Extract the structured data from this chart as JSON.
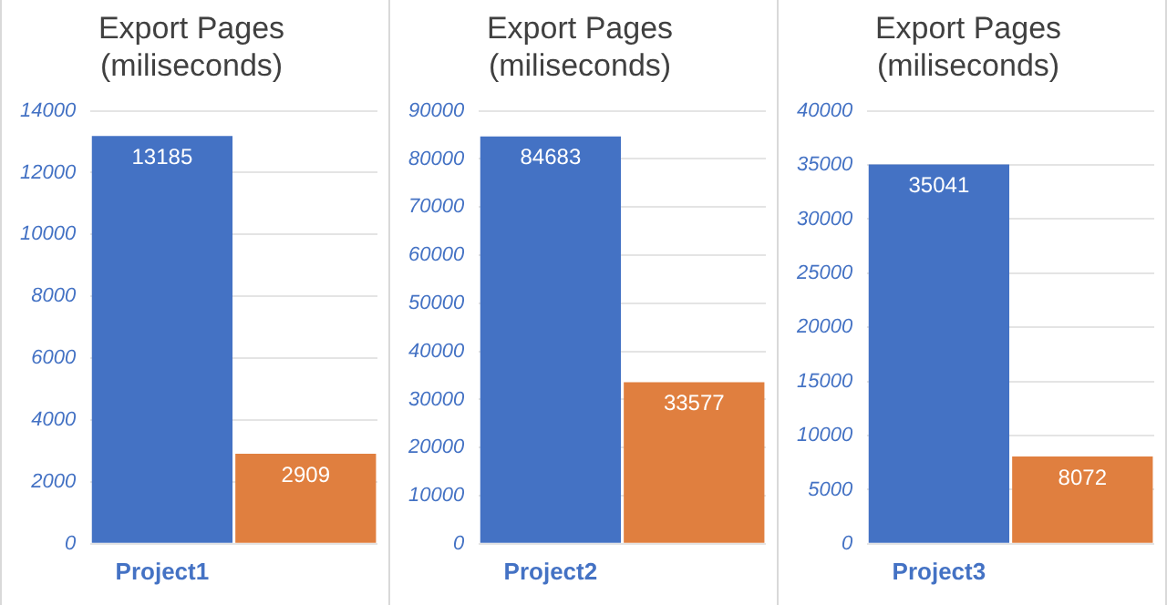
{
  "chart_data": [
    {
      "type": "bar",
      "title": "Export Pages",
      "subtitle": "(miliseconds)",
      "categories": [
        "Project1",
        null
      ],
      "values": [
        13185,
        2909
      ],
      "colors": [
        "#4472c4",
        "#e07f3f"
      ],
      "ylim": [
        0,
        14000
      ],
      "yticks": [
        0,
        2000,
        4000,
        6000,
        8000,
        10000,
        12000,
        14000
      ],
      "grid": "y",
      "data_labels": true
    },
    {
      "type": "bar",
      "title": "Export Pages",
      "subtitle": "(miliseconds)",
      "categories": [
        "Project2",
        null
      ],
      "values": [
        84683,
        33577
      ],
      "colors": [
        "#4472c4",
        "#e07f3f"
      ],
      "ylim": [
        0,
        90000
      ],
      "yticks": [
        0,
        10000,
        20000,
        30000,
        40000,
        50000,
        60000,
        70000,
        80000,
        90000
      ],
      "grid": "y",
      "data_labels": true
    },
    {
      "type": "bar",
      "title": "Export Pages",
      "subtitle": "(miliseconds)",
      "categories": [
        "Project3",
        null
      ],
      "values": [
        35041,
        8072
      ],
      "colors": [
        "#4472c4",
        "#e07f3f"
      ],
      "ylim": [
        0,
        40000
      ],
      "yticks": [
        0,
        5000,
        10000,
        15000,
        20000,
        25000,
        30000,
        35000,
        40000
      ],
      "grid": "y",
      "data_labels": true
    }
  ]
}
